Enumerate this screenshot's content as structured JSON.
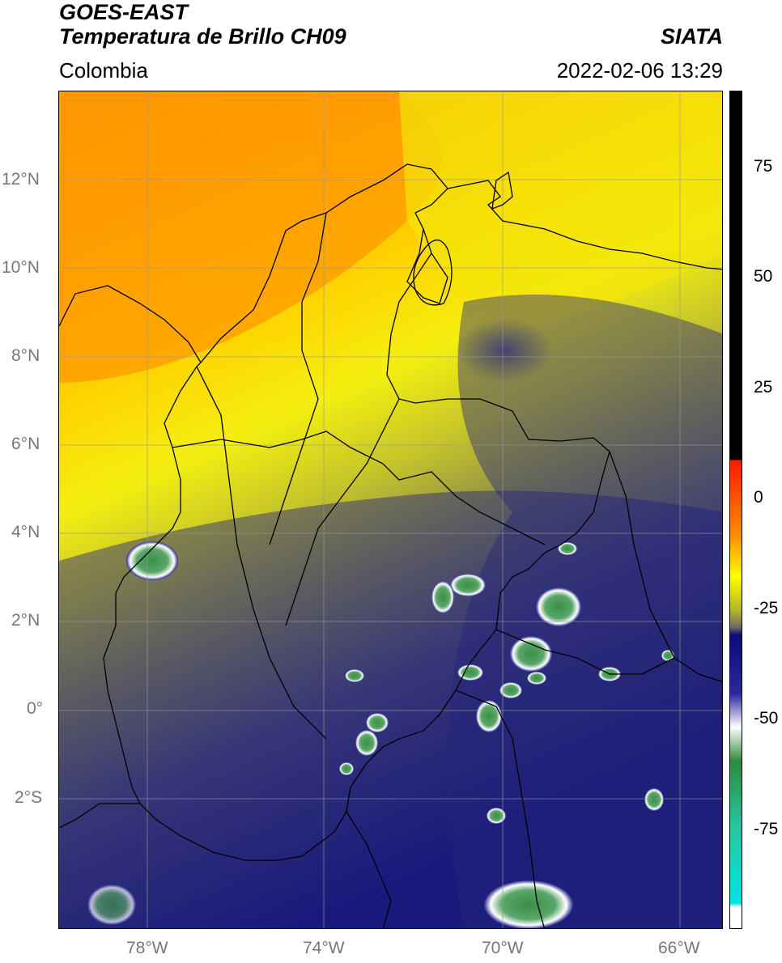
{
  "header": {
    "title_line1": "GOES-EAST",
    "title_line2": "Temperatura de Brillo CH09",
    "region": "Colombia",
    "brand": "SIATA",
    "datetime": "2022-02-06 13:29"
  },
  "map": {
    "lat_labels": [
      "12°N",
      "10°N",
      "8°N",
      "6°N",
      "4°N",
      "2°N",
      "0°",
      "2°S"
    ],
    "lon_labels": [
      "78°W",
      "74°W",
      "70°W",
      "66°W"
    ]
  },
  "colorbar": {
    "ticks": [
      "75",
      "50",
      "25",
      "0",
      "-25",
      "-50",
      "-75"
    ],
    "colors": {
      "black": "#000000",
      "red": "#ff1a00",
      "orange": "#ff8c00",
      "yellow": "#ffff00",
      "olive": "#b5b52a",
      "gray": "#6e6e64",
      "navy": "#0a0a7a",
      "white": "#ffffff",
      "green": "#2e8b3a",
      "teal": "#27c7a0",
      "cyan": "#00e5e5"
    }
  }
}
